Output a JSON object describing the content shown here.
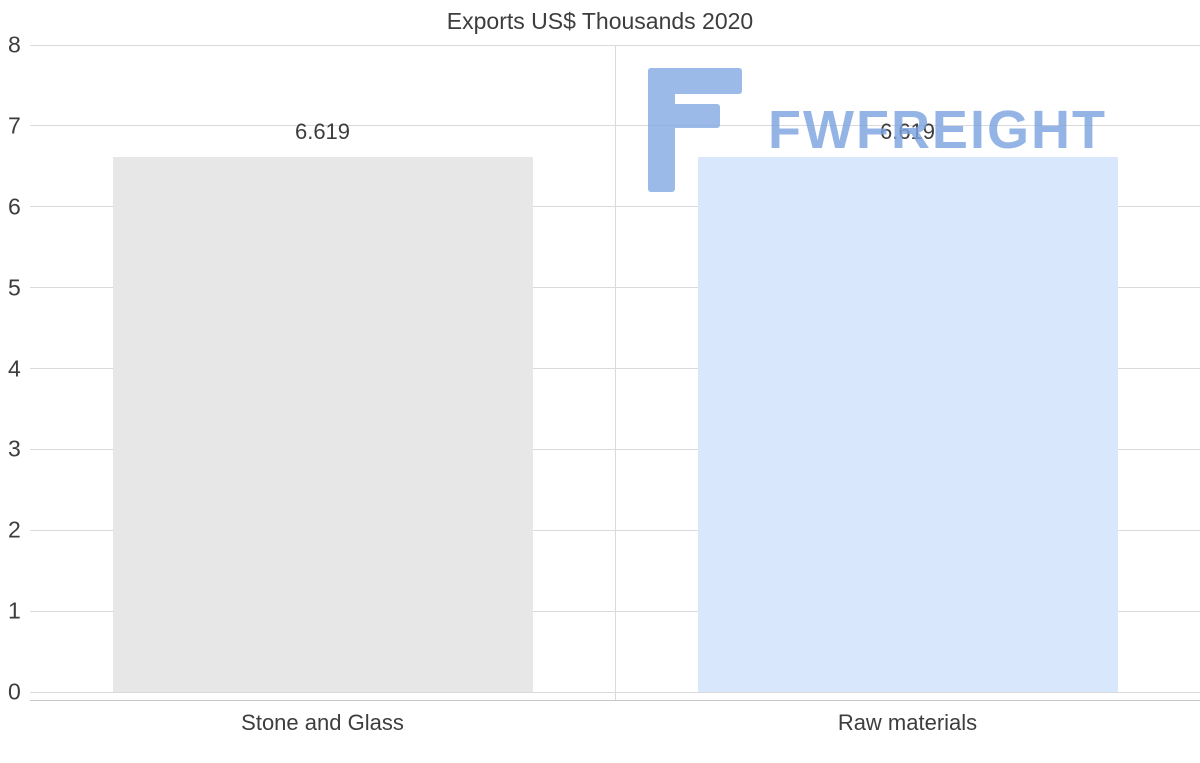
{
  "chart_data": {
    "type": "bar",
    "title": "Exports US$ Thousands 2020",
    "categories": [
      "Stone and Glass",
      "Raw materials"
    ],
    "values": [
      6.619,
      6.619
    ],
    "value_labels": [
      "6.619",
      "6.619"
    ],
    "bar_colors": [
      "#e7e7e7",
      "#d8e7fb"
    ],
    "ylim": [
      0,
      8
    ],
    "yticks": [
      0,
      1,
      2,
      3,
      4,
      5,
      6,
      7,
      8
    ],
    "grid": true,
    "xlabel": "",
    "ylabel": "",
    "legend": "none",
    "watermark": "FWFREIGHT"
  },
  "watermark": {
    "text": "FWFREIGHT",
    "text_color": "#7da4e0",
    "glyph_color": "#86abe4"
  },
  "colors": {
    "gridline": "#dadada",
    "axis": "#c6c6c6",
    "text": "#3d3d3d"
  }
}
